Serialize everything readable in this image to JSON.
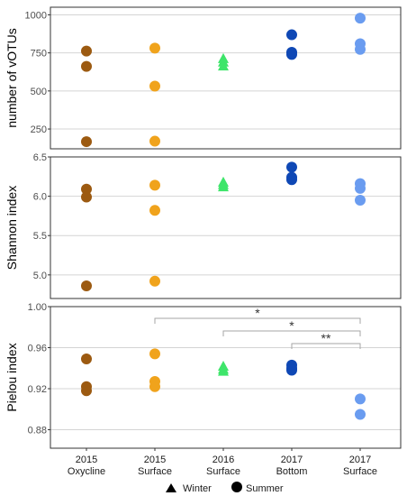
{
  "colors": {
    "2015 Oxycline": "#9c5a11",
    "2015 Surface": "#f0a31c",
    "2016 Surface": "#3ee56a",
    "2017 Bottom": "#0f48b5",
    "2017 Surface": "#6a9cf0",
    "grid": "#d4d4d4",
    "frame": "#333333",
    "bracket": "#a6a6a6"
  },
  "x_labels": [
    {
      "line1": "2015",
      "line2": "Oxycline"
    },
    {
      "line1": "2015",
      "line2": "Surface"
    },
    {
      "line1": "2016",
      "line2": "Surface"
    },
    {
      "line1": "2017",
      "line2": "Bottom"
    },
    {
      "line1": "2017",
      "line2": "Surface"
    }
  ],
  "legend": {
    "items": [
      {
        "shape": "triangle",
        "label": "Winter"
      },
      {
        "shape": "circle",
        "label": "Summer"
      }
    ]
  },
  "chart_data": [
    {
      "type": "scatter",
      "ylabel": "number of vOTUs",
      "ylim": [
        120,
        1050
      ],
      "yticks": [
        250,
        500,
        750,
        1000
      ],
      "tick_labels": [
        "1000",
        "750",
        "500",
        "250"
      ],
      "grid": true,
      "categories": [
        "2015 Oxycline",
        "2015 Surface",
        "2016 Surface",
        "2017 Bottom",
        "2017 Surface"
      ],
      "series": [
        {
          "category": "2015 Oxycline",
          "season": "Summer",
          "values": [
            762,
            661,
            167
          ]
        },
        {
          "category": "2015 Surface",
          "season": "Summer",
          "values": [
            781,
            532,
            170
          ]
        },
        {
          "category": "2016 Surface",
          "season": "Winter",
          "values": [
            713,
            690,
            664
          ]
        },
        {
          "category": "2017 Bottom",
          "season": "Summer",
          "values": [
            869,
            754,
            740
          ]
        },
        {
          "category": "2017 Surface",
          "season": "Summer",
          "values": [
            978,
            810,
            773
          ]
        }
      ]
    },
    {
      "type": "scatter",
      "ylabel": "Shannon index",
      "ylim": [
        4.7,
        6.5
      ],
      "yticks": [
        5.0,
        5.5,
        6.0,
        6.5
      ],
      "tick_labels": [
        "6.5",
        "6.0",
        "5.5",
        "5.0"
      ],
      "grid": true,
      "categories": [
        "2015 Oxycline",
        "2015 Surface",
        "2016 Surface",
        "2017 Bottom",
        "2017 Surface"
      ],
      "series": [
        {
          "category": "2015 Oxycline",
          "season": "Summer",
          "values": [
            6.09,
            5.99,
            4.86
          ]
        },
        {
          "category": "2015 Surface",
          "season": "Summer",
          "values": [
            6.14,
            5.82,
            4.92
          ]
        },
        {
          "category": "2016 Surface",
          "season": "Winter",
          "values": [
            6.18,
            6.15,
            6.12
          ]
        },
        {
          "category": "2017 Bottom",
          "season": "Summer",
          "values": [
            6.37,
            6.24,
            6.21
          ]
        },
        {
          "category": "2017 Surface",
          "season": "Summer",
          "values": [
            6.16,
            6.1,
            5.95
          ]
        }
      ]
    },
    {
      "type": "scatter",
      "ylabel": "Pielou index",
      "ylim": [
        0.862,
        1.0
      ],
      "yticks": [
        0.88,
        0.92,
        0.96,
        1.0
      ],
      "tick_labels": [
        "1.00",
        "0.96",
        "0.92",
        "0.88"
      ],
      "grid": true,
      "categories": [
        "2015 Oxycline",
        "2015 Surface",
        "2016 Surface",
        "2017 Bottom",
        "2017 Surface"
      ],
      "series": [
        {
          "category": "2015 Oxycline",
          "season": "Summer",
          "values": [
            0.949,
            0.922,
            0.918
          ]
        },
        {
          "category": "2015 Surface",
          "season": "Summer",
          "values": [
            0.954,
            0.927,
            0.922
          ]
        },
        {
          "category": "2016 Surface",
          "season": "Winter",
          "values": [
            0.942,
            0.939,
            0.937
          ]
        },
        {
          "category": "2017 Bottom",
          "season": "Summer",
          "values": [
            0.943,
            0.94,
            0.938
          ]
        },
        {
          "category": "2017 Surface",
          "season": "Summer",
          "values": [
            0.91,
            0.895
          ]
        }
      ],
      "annotations": [
        {
          "from": "2015 Surface",
          "to": "2017 Surface",
          "y": 0.98,
          "label": "*"
        },
        {
          "from": "2016 Surface",
          "to": "2017 Surface",
          "y": 0.981,
          "label": "*"
        },
        {
          "from": "2017 Bottom",
          "to": "2017 Surface",
          "y": 0.967,
          "label": "**"
        }
      ]
    }
  ]
}
